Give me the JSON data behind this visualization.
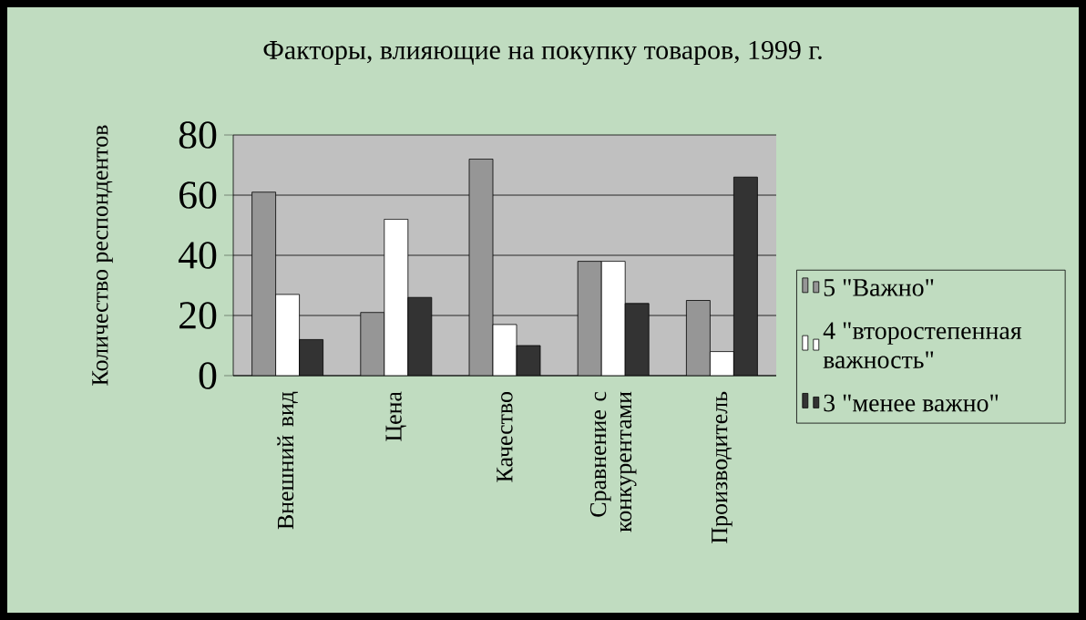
{
  "chart_data": {
    "type": "bar",
    "title": "Факторы, влияющие на покупку товаров, 1999 г.",
    "ylabel": "Количество респондентов",
    "categories": [
      "Внешний вид",
      "Цена",
      "Качество",
      "Сравнение с конкурентами",
      "Производитель"
    ],
    "series": [
      {
        "name": "5 \"Важно\"",
        "color": "#969696",
        "values": [
          61,
          21,
          72,
          38,
          25
        ]
      },
      {
        "name": "4 \"второстепенная важность\"",
        "color": "#ffffff",
        "values": [
          27,
          52,
          17,
          38,
          8
        ]
      },
      {
        "name": "3 \"менее важно\"",
        "color": "#333333",
        "values": [
          12,
          26,
          10,
          24,
          66
        ]
      }
    ],
    "ylim": [
      0,
      80
    ],
    "yticks": [
      0,
      20,
      40,
      60,
      80
    ],
    "grid": "y",
    "legend": "right"
  }
}
